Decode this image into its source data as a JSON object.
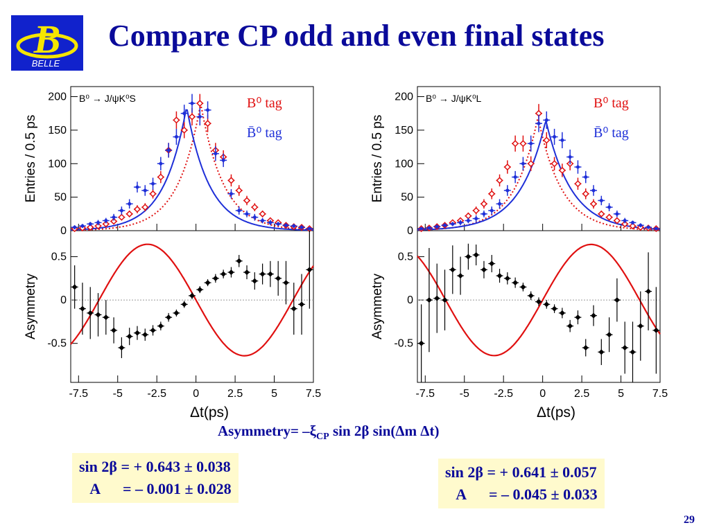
{
  "slide": {
    "title": "Compare CP odd and even final states",
    "formula": "Asymmetry= –ξ",
    "formula_sub": "CP",
    "formula_rest": " sin 2β sin(Δm Δt)",
    "page_number": "29"
  },
  "logo": {
    "letter": "B",
    "text": "BELLE"
  },
  "results": [
    {
      "line1": "sin 2β = + 0.643 ± 0.038",
      "line2": "   A      = – 0.001 ± 0.028"
    },
    {
      "line1": "sin 2β = + 0.641 ± 0.057",
      "line2": "   A      = – 0.045 ± 0.033"
    }
  ],
  "colors": {
    "blue": "#1e2fd8",
    "red": "#e01010",
    "title": "#0a0a9a",
    "box": "#fffacd"
  },
  "chart_data": [
    {
      "type": "scatter",
      "title": "B⁰ → J/ψK⁰S",
      "legend": [
        {
          "name": "B⁰ tag",
          "color": "#e01010"
        },
        {
          "name": "B̄⁰ tag",
          "color": "#1e2fd8"
        }
      ],
      "legend_position": "top-right",
      "xlabel": "Δt(ps)",
      "xlim": [
        -8,
        7.5
      ],
      "xticks": [
        "-7.5",
        "-5",
        "-2.5",
        "0",
        "2.5",
        "5",
        "7.5"
      ],
      "top": {
        "ylabel": "Entries / 0.5 ps",
        "ylim": [
          0,
          215
        ],
        "yticks": [
          "0",
          "50",
          "100",
          "150",
          "200"
        ],
        "blue_points": {
          "x": [
            -7.75,
            -7.25,
            -6.75,
            -6.25,
            -5.75,
            -5.25,
            -4.75,
            -4.25,
            -3.75,
            -3.25,
            -2.75,
            -2.25,
            -1.75,
            -1.25,
            -0.75,
            -0.25,
            0.25,
            0.75,
            1.25,
            1.75,
            2.25,
            2.75,
            3.25,
            3.75,
            4.25,
            4.75,
            5.25,
            5.75,
            6.25,
            6.75,
            7.25
          ],
          "y": [
            5,
            7,
            10,
            12,
            15,
            20,
            30,
            40,
            65,
            60,
            70,
            100,
            120,
            140,
            175,
            190,
            170,
            180,
            115,
            105,
            55,
            30,
            25,
            20,
            15,
            12,
            10,
            8,
            7,
            5,
            3
          ],
          "err": [
            3,
            3,
            3,
            4,
            4,
            5,
            6,
            7,
            8,
            8,
            9,
            10,
            11,
            12,
            13,
            14,
            13,
            13,
            11,
            10,
            7,
            6,
            5,
            5,
            4,
            4,
            3,
            3,
            3,
            3,
            2
          ]
        },
        "red_points": {
          "x": [
            -7.75,
            -7.25,
            -6.75,
            -6.25,
            -5.75,
            -5.25,
            -4.75,
            -4.25,
            -3.75,
            -3.25,
            -2.75,
            -2.25,
            -1.75,
            -1.25,
            -0.75,
            -0.25,
            0.25,
            0.75,
            1.25,
            1.75,
            2.25,
            2.75,
            3.25,
            3.75,
            4.25,
            4.75,
            5.25,
            5.75,
            6.25,
            6.75,
            7.25
          ],
          "y": [
            3,
            4,
            5,
            7,
            10,
            14,
            20,
            25,
            32,
            35,
            55,
            80,
            120,
            165,
            150,
            170,
            190,
            160,
            120,
            110,
            75,
            60,
            45,
            35,
            25,
            15,
            12,
            8,
            6,
            5,
            3
          ],
          "err": [
            2,
            2,
            2,
            3,
            3,
            4,
            4,
            5,
            6,
            6,
            7,
            9,
            11,
            13,
            12,
            13,
            14,
            13,
            11,
            10,
            9,
            8,
            7,
            6,
            5,
            4,
            3,
            3,
            2,
            2,
            2
          ]
        },
        "blue_fit": {
          "amplitude": 185,
          "center": -0.6,
          "sigma": 1.45
        },
        "red_fit": {
          "amplitude": 190,
          "center": 0.3,
          "sigma": 1.45
        }
      },
      "bottom": {
        "ylabel": "Asymmetry",
        "ylim": [
          -0.95,
          0.8
        ],
        "yticks": [
          "-0.5",
          "0",
          "0.5"
        ],
        "points": {
          "x": [
            -7.75,
            -7.25,
            -6.75,
            -6.25,
            -5.75,
            -5.25,
            -4.75,
            -4.25,
            -3.75,
            -3.25,
            -2.75,
            -2.25,
            -1.75,
            -1.25,
            -0.75,
            -0.25,
            0.25,
            0.75,
            1.25,
            1.75,
            2.25,
            2.75,
            3.25,
            3.75,
            4.25,
            4.75,
            5.25,
            5.75,
            6.25,
            6.75,
            7.25
          ],
          "y": [
            0.15,
            -0.1,
            -0.15,
            -0.17,
            -0.2,
            -0.35,
            -0.55,
            -0.42,
            -0.38,
            -0.4,
            -0.35,
            -0.3,
            -0.2,
            -0.15,
            -0.05,
            0.05,
            0.12,
            0.2,
            0.25,
            0.3,
            0.32,
            0.45,
            0.32,
            0.22,
            0.3,
            0.3,
            0.25,
            0.2,
            -0.1,
            -0.05,
            0.35
          ],
          "err": [
            0.25,
            0.3,
            0.3,
            0.25,
            0.2,
            0.15,
            0.12,
            0.1,
            0.08,
            0.07,
            0.06,
            0.05,
            0.05,
            0.04,
            0.04,
            0.04,
            0.04,
            0.04,
            0.05,
            0.05,
            0.06,
            0.07,
            0.08,
            0.1,
            0.12,
            0.15,
            0.2,
            0.25,
            0.3,
            0.35,
            0.45
          ]
        },
        "fit": {
          "sin2beta": 0.643,
          "xi_cp": 1,
          "dm": 0.507
        }
      }
    },
    {
      "type": "scatter",
      "title": "B⁰ → J/ψK⁰L",
      "legend": [
        {
          "name": "B⁰ tag",
          "color": "#e01010"
        },
        {
          "name": "B̄⁰ tag",
          "color": "#1e2fd8"
        }
      ],
      "legend_position": "top-right",
      "xlabel": "Δt(ps)",
      "xlim": [
        -8,
        7.5
      ],
      "xticks": [
        "-7.5",
        "-5",
        "-2.5",
        "0",
        "2.5",
        "5",
        "7.5"
      ],
      "top": {
        "ylabel": "Entries / 0.5 ps",
        "ylim": [
          0,
          215
        ],
        "yticks": [
          "0",
          "50",
          "100",
          "150",
          "200"
        ],
        "blue_points": {
          "x": [
            -7.75,
            -7.25,
            -6.75,
            -6.25,
            -5.75,
            -5.25,
            -4.75,
            -4.25,
            -3.75,
            -3.25,
            -2.75,
            -2.25,
            -1.75,
            -1.25,
            -0.75,
            -0.25,
            0.25,
            0.75,
            1.25,
            1.75,
            2.25,
            2.75,
            3.25,
            3.75,
            4.25,
            4.75,
            5.25,
            5.75,
            6.25,
            6.75,
            7.25
          ],
          "y": [
            3,
            4,
            6,
            8,
            10,
            12,
            15,
            18,
            25,
            30,
            40,
            60,
            80,
            100,
            130,
            160,
            165,
            140,
            135,
            110,
            95,
            80,
            60,
            45,
            35,
            25,
            15,
            12,
            8,
            5,
            3
          ],
          "err": [
            2,
            2,
            3,
            3,
            3,
            4,
            4,
            5,
            5,
            6,
            7,
            8,
            9,
            10,
            12,
            13,
            13,
            12,
            12,
            11,
            10,
            9,
            8,
            7,
            6,
            5,
            4,
            3,
            3,
            2,
            2
          ]
        },
        "red_points": {
          "x": [
            -7.75,
            -7.25,
            -6.75,
            -6.25,
            -5.75,
            -5.25,
            -4.75,
            -4.25,
            -3.75,
            -3.25,
            -2.75,
            -2.25,
            -1.75,
            -1.25,
            -0.75,
            -0.25,
            0.25,
            0.75,
            1.25,
            1.75,
            2.25,
            2.75,
            3.25,
            3.75,
            4.25,
            4.75,
            5.25,
            5.75,
            6.25,
            6.75,
            7.25
          ],
          "y": [
            3,
            4,
            6,
            8,
            12,
            15,
            22,
            30,
            40,
            55,
            75,
            95,
            130,
            130,
            100,
            175,
            135,
            100,
            90,
            100,
            70,
            55,
            40,
            25,
            20,
            15,
            10,
            7,
            5,
            4,
            3
          ],
          "err": [
            2,
            2,
            3,
            3,
            4,
            4,
            5,
            6,
            7,
            8,
            9,
            10,
            12,
            12,
            11,
            14,
            12,
            10,
            10,
            10,
            9,
            8,
            7,
            5,
            5,
            4,
            3,
            3,
            2,
            2,
            2
          ]
        },
        "blue_fit": {
          "amplitude": 165,
          "center": 0.2,
          "sigma": 1.65
        },
        "red_fit": {
          "amplitude": 170,
          "center": -0.3,
          "sigma": 1.5
        }
      },
      "bottom": {
        "ylabel": "Asymmetry",
        "ylim": [
          -0.95,
          0.8
        ],
        "yticks": [
          "-0.5",
          "0",
          "0.5"
        ],
        "points": {
          "x": [
            -7.75,
            -7.25,
            -6.75,
            -6.25,
            -5.75,
            -5.25,
            -4.75,
            -4.25,
            -3.75,
            -3.25,
            -2.75,
            -2.25,
            -1.75,
            -1.25,
            -0.75,
            -0.25,
            0.25,
            0.75,
            1.25,
            1.75,
            2.25,
            2.75,
            3.25,
            3.75,
            4.25,
            4.75,
            5.25,
            5.75,
            6.25,
            6.75,
            7.25
          ],
          "y": [
            -0.5,
            0,
            0.02,
            0,
            0.35,
            0.28,
            0.5,
            0.52,
            0.35,
            0.42,
            0.28,
            0.25,
            0.2,
            0.15,
            0.05,
            -0.02,
            -0.05,
            -0.1,
            -0.15,
            -0.3,
            -0.2,
            -0.55,
            -0.18,
            -0.6,
            -0.4,
            0,
            -0.55,
            -0.6,
            -0.3,
            0.1,
            -0.35
          ],
          "err": [
            0.45,
            0.6,
            0.4,
            0.35,
            0.28,
            0.22,
            0.15,
            0.12,
            0.1,
            0.1,
            0.08,
            0.07,
            0.06,
            0.05,
            0.05,
            0.05,
            0.05,
            0.05,
            0.06,
            0.07,
            0.08,
            0.1,
            0.12,
            0.15,
            0.2,
            0.25,
            0.3,
            0.35,
            0.4,
            0.45,
            0.5
          ]
        },
        "fit": {
          "sin2beta": 0.641,
          "xi_cp": -1,
          "dm": 0.507
        }
      }
    }
  ]
}
